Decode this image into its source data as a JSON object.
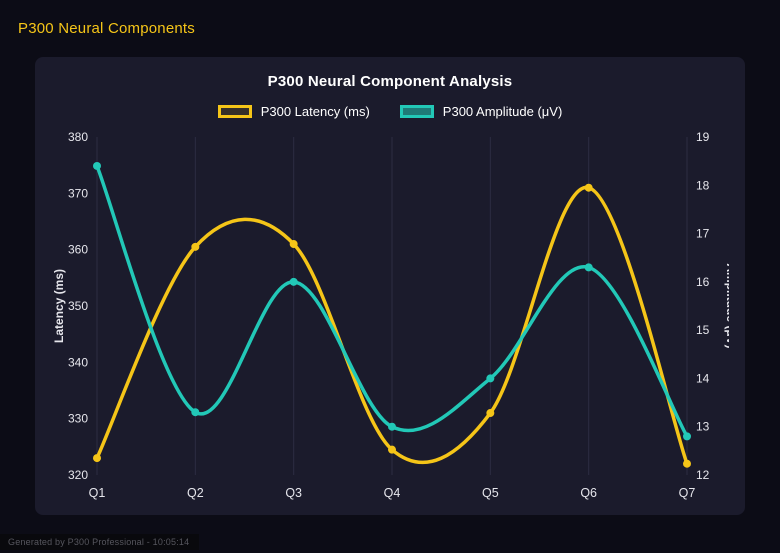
{
  "page": {
    "header_title": "P300 Neural Components",
    "footer_note": "Generated by P300 Professional - 10:05:14"
  },
  "colors": {
    "accent_yellow": "#f5c518",
    "accent_teal": "#22c8b7",
    "page_bg": "#0c0c16",
    "panel_bg": "#1b1b2c",
    "grid": "#2c2c42",
    "title_text": "#ffffff",
    "tick_text": "#e6e6ec",
    "footer_text": "#56565e"
  },
  "chart_data": {
    "type": "line",
    "title": "P300 Neural Component Analysis",
    "categories": [
      "Q1",
      "Q2",
      "Q3",
      "Q4",
      "Q5",
      "Q6",
      "Q7"
    ],
    "series": [
      {
        "name": "P300 Latency (ms)",
        "axis": "left",
        "color": "#f5c518",
        "fill_alpha": 0.12,
        "values": [
          323,
          360.5,
          361,
          324.5,
          331,
          371,
          322
        ]
      },
      {
        "name": "P300 Amplitude (μV)",
        "axis": "right",
        "color": "#22c8b7",
        "fill_alpha": 0.55,
        "values": [
          18.4,
          13.3,
          16.0,
          13.0,
          14.0,
          16.3,
          12.8
        ]
      }
    ],
    "left_axis": {
      "label": "Latency (ms)",
      "min": 320,
      "max": 380,
      "step": 10
    },
    "right_axis": {
      "label": "Amplitude (μV)",
      "min": 12,
      "max": 19,
      "step": 1
    },
    "grid": "vertical",
    "legend_position": "top",
    "smoothing": "catmull-rom"
  }
}
